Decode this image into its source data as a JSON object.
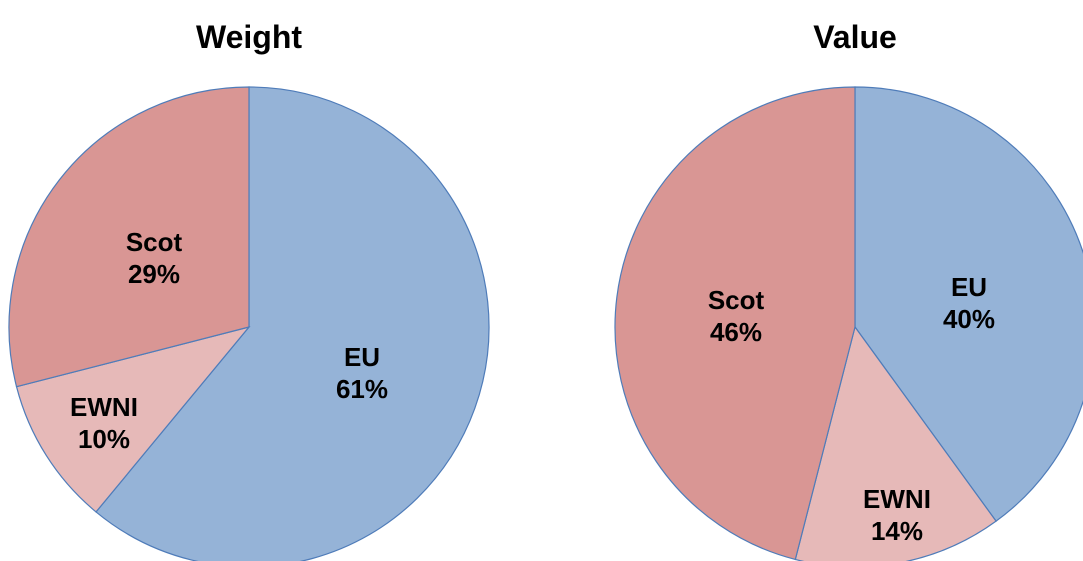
{
  "chart_data": [
    {
      "type": "pie",
      "title": "Weight",
      "start_angle_deg": 0,
      "direction": "clockwise",
      "slices": [
        {
          "label": "EU",
          "value": 61,
          "value_label": "61%",
          "color": "#95b3d7"
        },
        {
          "label": "EWNI",
          "value": 10,
          "value_label": "10%",
          "color": "#e6b9b8"
        },
        {
          "label": "Scot",
          "value": 29,
          "value_label": "29%",
          "color": "#d99694"
        }
      ]
    },
    {
      "type": "pie",
      "title": "Value",
      "start_angle_deg": 0,
      "direction": "clockwise",
      "slices": [
        {
          "label": "EU",
          "value": 40,
          "value_label": "40%",
          "color": "#95b3d7"
        },
        {
          "label": "EWNI",
          "value": 14,
          "value_label": "14%",
          "color": "#e6b9b8"
        },
        {
          "label": "Scot",
          "value": 46,
          "value_label": "46%",
          "color": "#d99694"
        }
      ]
    }
  ]
}
